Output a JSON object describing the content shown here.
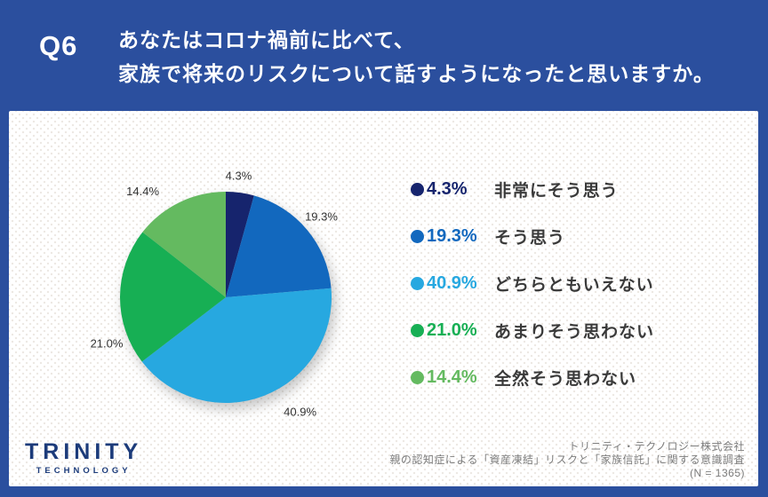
{
  "header": {
    "q_label": "Q6",
    "question_line1": "あなたはコロナ禍前に比べて、",
    "question_line2": "家族で将来のリスクについて話すようになったと思いますか。"
  },
  "chart_data": {
    "type": "pie",
    "title": "Q6 あなたはコロナ禍前に比べて、家族で将来のリスクについて話すようになったと思いますか。",
    "categories": [
      "非常にそう思う",
      "そう思う",
      "どちらともいえない",
      "あまりそう思わない",
      "全然そう思わない"
    ],
    "values": [
      4.3,
      19.3,
      40.9,
      21.0,
      14.4
    ],
    "colors": [
      "#16246D",
      "#1268BE",
      "#27A8E0",
      "#17AF54",
      "#64BA60"
    ],
    "start_angle_deg": 0,
    "direction": "clockwise",
    "legend_position": "right",
    "data_labels": "outside"
  },
  "footer": {
    "logo_title": "TRINITY",
    "logo_subtitle": "TECHNOLOGY",
    "source_lines": [
      "トリニティ・テクノロジー株式会社",
      "親の認知症による「資産凍結」リスクと「家族信託」に関する意識調査",
      "(N = 1365)"
    ]
  },
  "colors": {
    "background": "#2B4F9E",
    "card": "#FFFFFF",
    "question_text": "#FFFFFF",
    "label_text": "#3A3A3A",
    "source_text": "#7C7C7C",
    "logo_navy": "#1C3B7A"
  }
}
